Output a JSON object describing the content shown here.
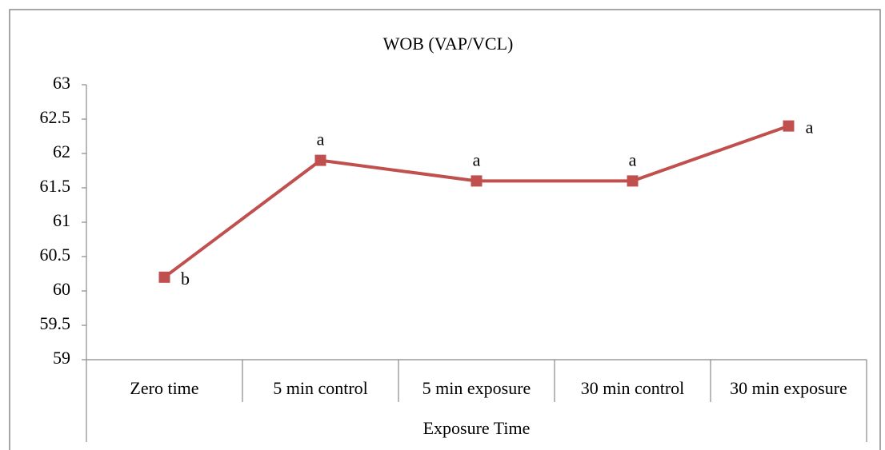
{
  "chart_data": {
    "type": "line",
    "title": "WOB (VAP/VCL)",
    "x_label": "Exposure Time",
    "categories": [
      "Zero time",
      "5 min control",
      "5 min exposure",
      "30 min control",
      "30 min exposure"
    ],
    "series": [
      {
        "name": "WOB (VAP/VCL)",
        "color": "#c0504d",
        "values": [
          60.2,
          61.9,
          61.6,
          61.6,
          62.4
        ],
        "point_labels": [
          "b",
          "a",
          "a",
          "a",
          "a"
        ]
      }
    ],
    "ylim": [
      59,
      63
    ],
    "yticks": [
      59,
      59.5,
      60,
      60.5,
      61,
      61.5,
      62,
      62.5,
      63
    ],
    "grid": false,
    "legend": false
  }
}
